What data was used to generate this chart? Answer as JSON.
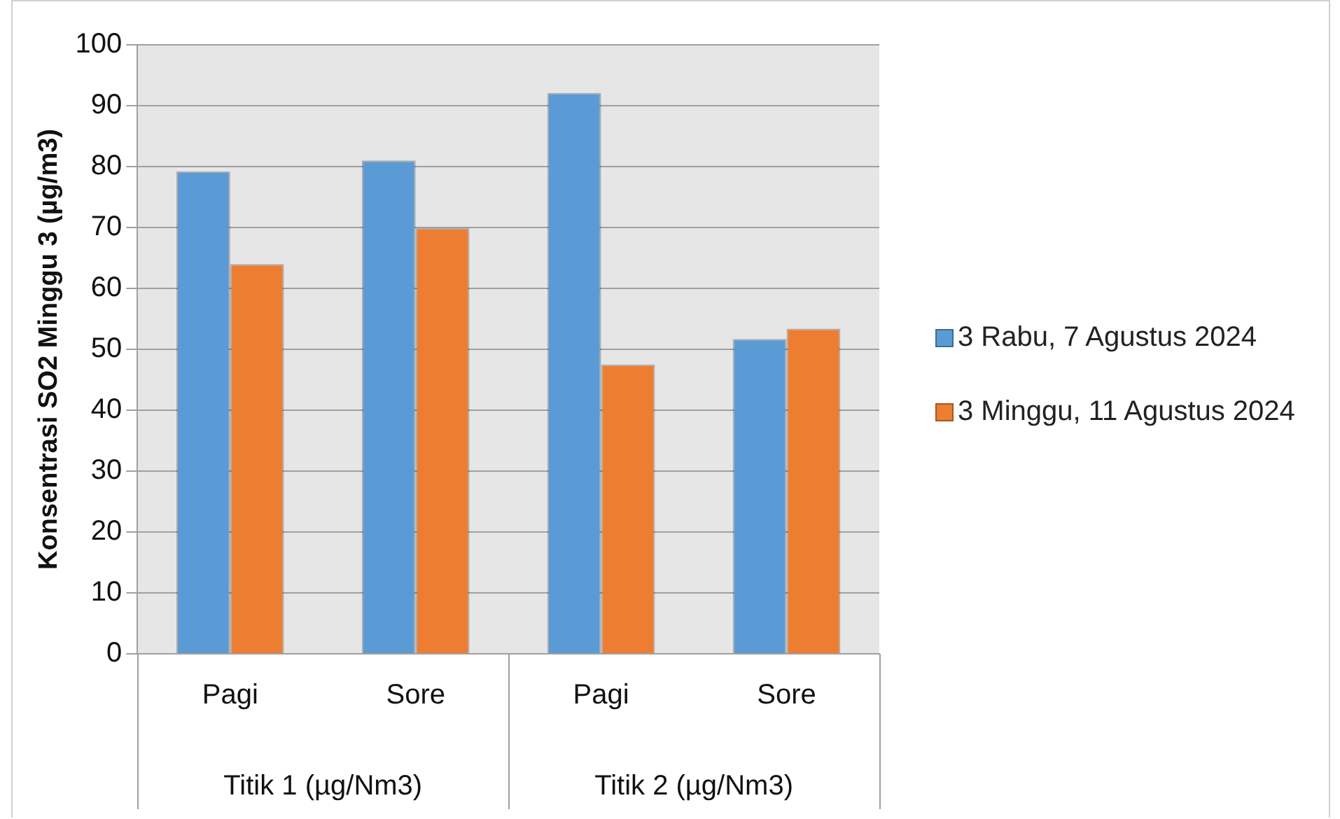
{
  "chart_data": {
    "type": "bar",
    "ylabel": "Konsentrasi SO2 Minggu 3 (µg/m3)",
    "categories": [
      "Pagi",
      "Sore",
      "Pagi",
      "Sore"
    ],
    "series": [
      {
        "name": "3 Rabu, 7 Agustus 2024",
        "color": "#5b9bd5",
        "values": [
          79.2,
          81.0,
          92.1,
          51.7
        ]
      },
      {
        "name": "3 Minggu, 11 Agustus 2024",
        "color": "#ed7d31",
        "values": [
          64.0,
          69.9,
          47.5,
          53.4
        ]
      }
    ],
    "annotations": [
      "Titik 1 (µg/Nm3)",
      "Titik 2 (µg/Nm3)"
    ],
    "ylim": [
      0,
      100
    ],
    "yticks": [
      0,
      10,
      20,
      30,
      40,
      50,
      60,
      70,
      80,
      90,
      100
    ],
    "grid": "y",
    "legend": "right"
  }
}
